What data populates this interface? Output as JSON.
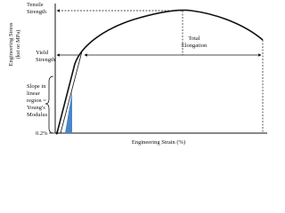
{
  "diagram": {
    "y_axis_label": [
      "Engineering Stress",
      "(ksi or MPa)"
    ],
    "x_axis_label": "Engineering Strain (%)",
    "tensile_strength": [
      "Tensile",
      "Strength"
    ],
    "yield_strength": [
      "Yield",
      "Strength"
    ],
    "total_elongation": [
      "Total",
      "Elongation"
    ],
    "slope_note": [
      "Slope in",
      "linear",
      "region =",
      "Young's",
      "Modulus"
    ],
    "offset": "0.2%"
  }
}
